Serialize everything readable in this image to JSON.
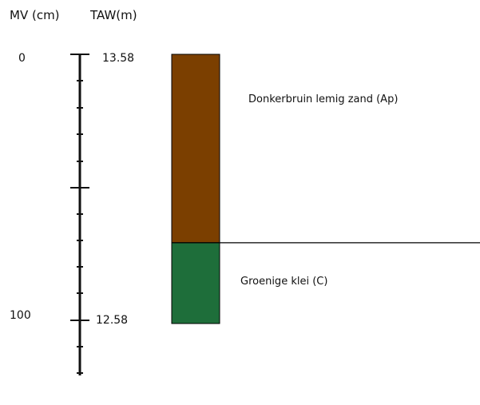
{
  "headers": {
    "mv": "MV (cm)",
    "taw": "TAW(m)"
  },
  "scale": {
    "mv_top": "0",
    "mv_bottom": "100",
    "taw_top": "13.58",
    "taw_bottom": "12.58"
  },
  "layers": [
    {
      "name": "Donkerbruin lemig zand (Ap)",
      "color": "#7b3f00",
      "from_cm": 0,
      "to_cm": 70
    },
    {
      "name": "Groenige klei (C)",
      "color": "#1e6e3a",
      "from_cm": 70,
      "to_cm": 100
    }
  ],
  "colors": {
    "axis": "#111111",
    "outline": "#000000"
  }
}
